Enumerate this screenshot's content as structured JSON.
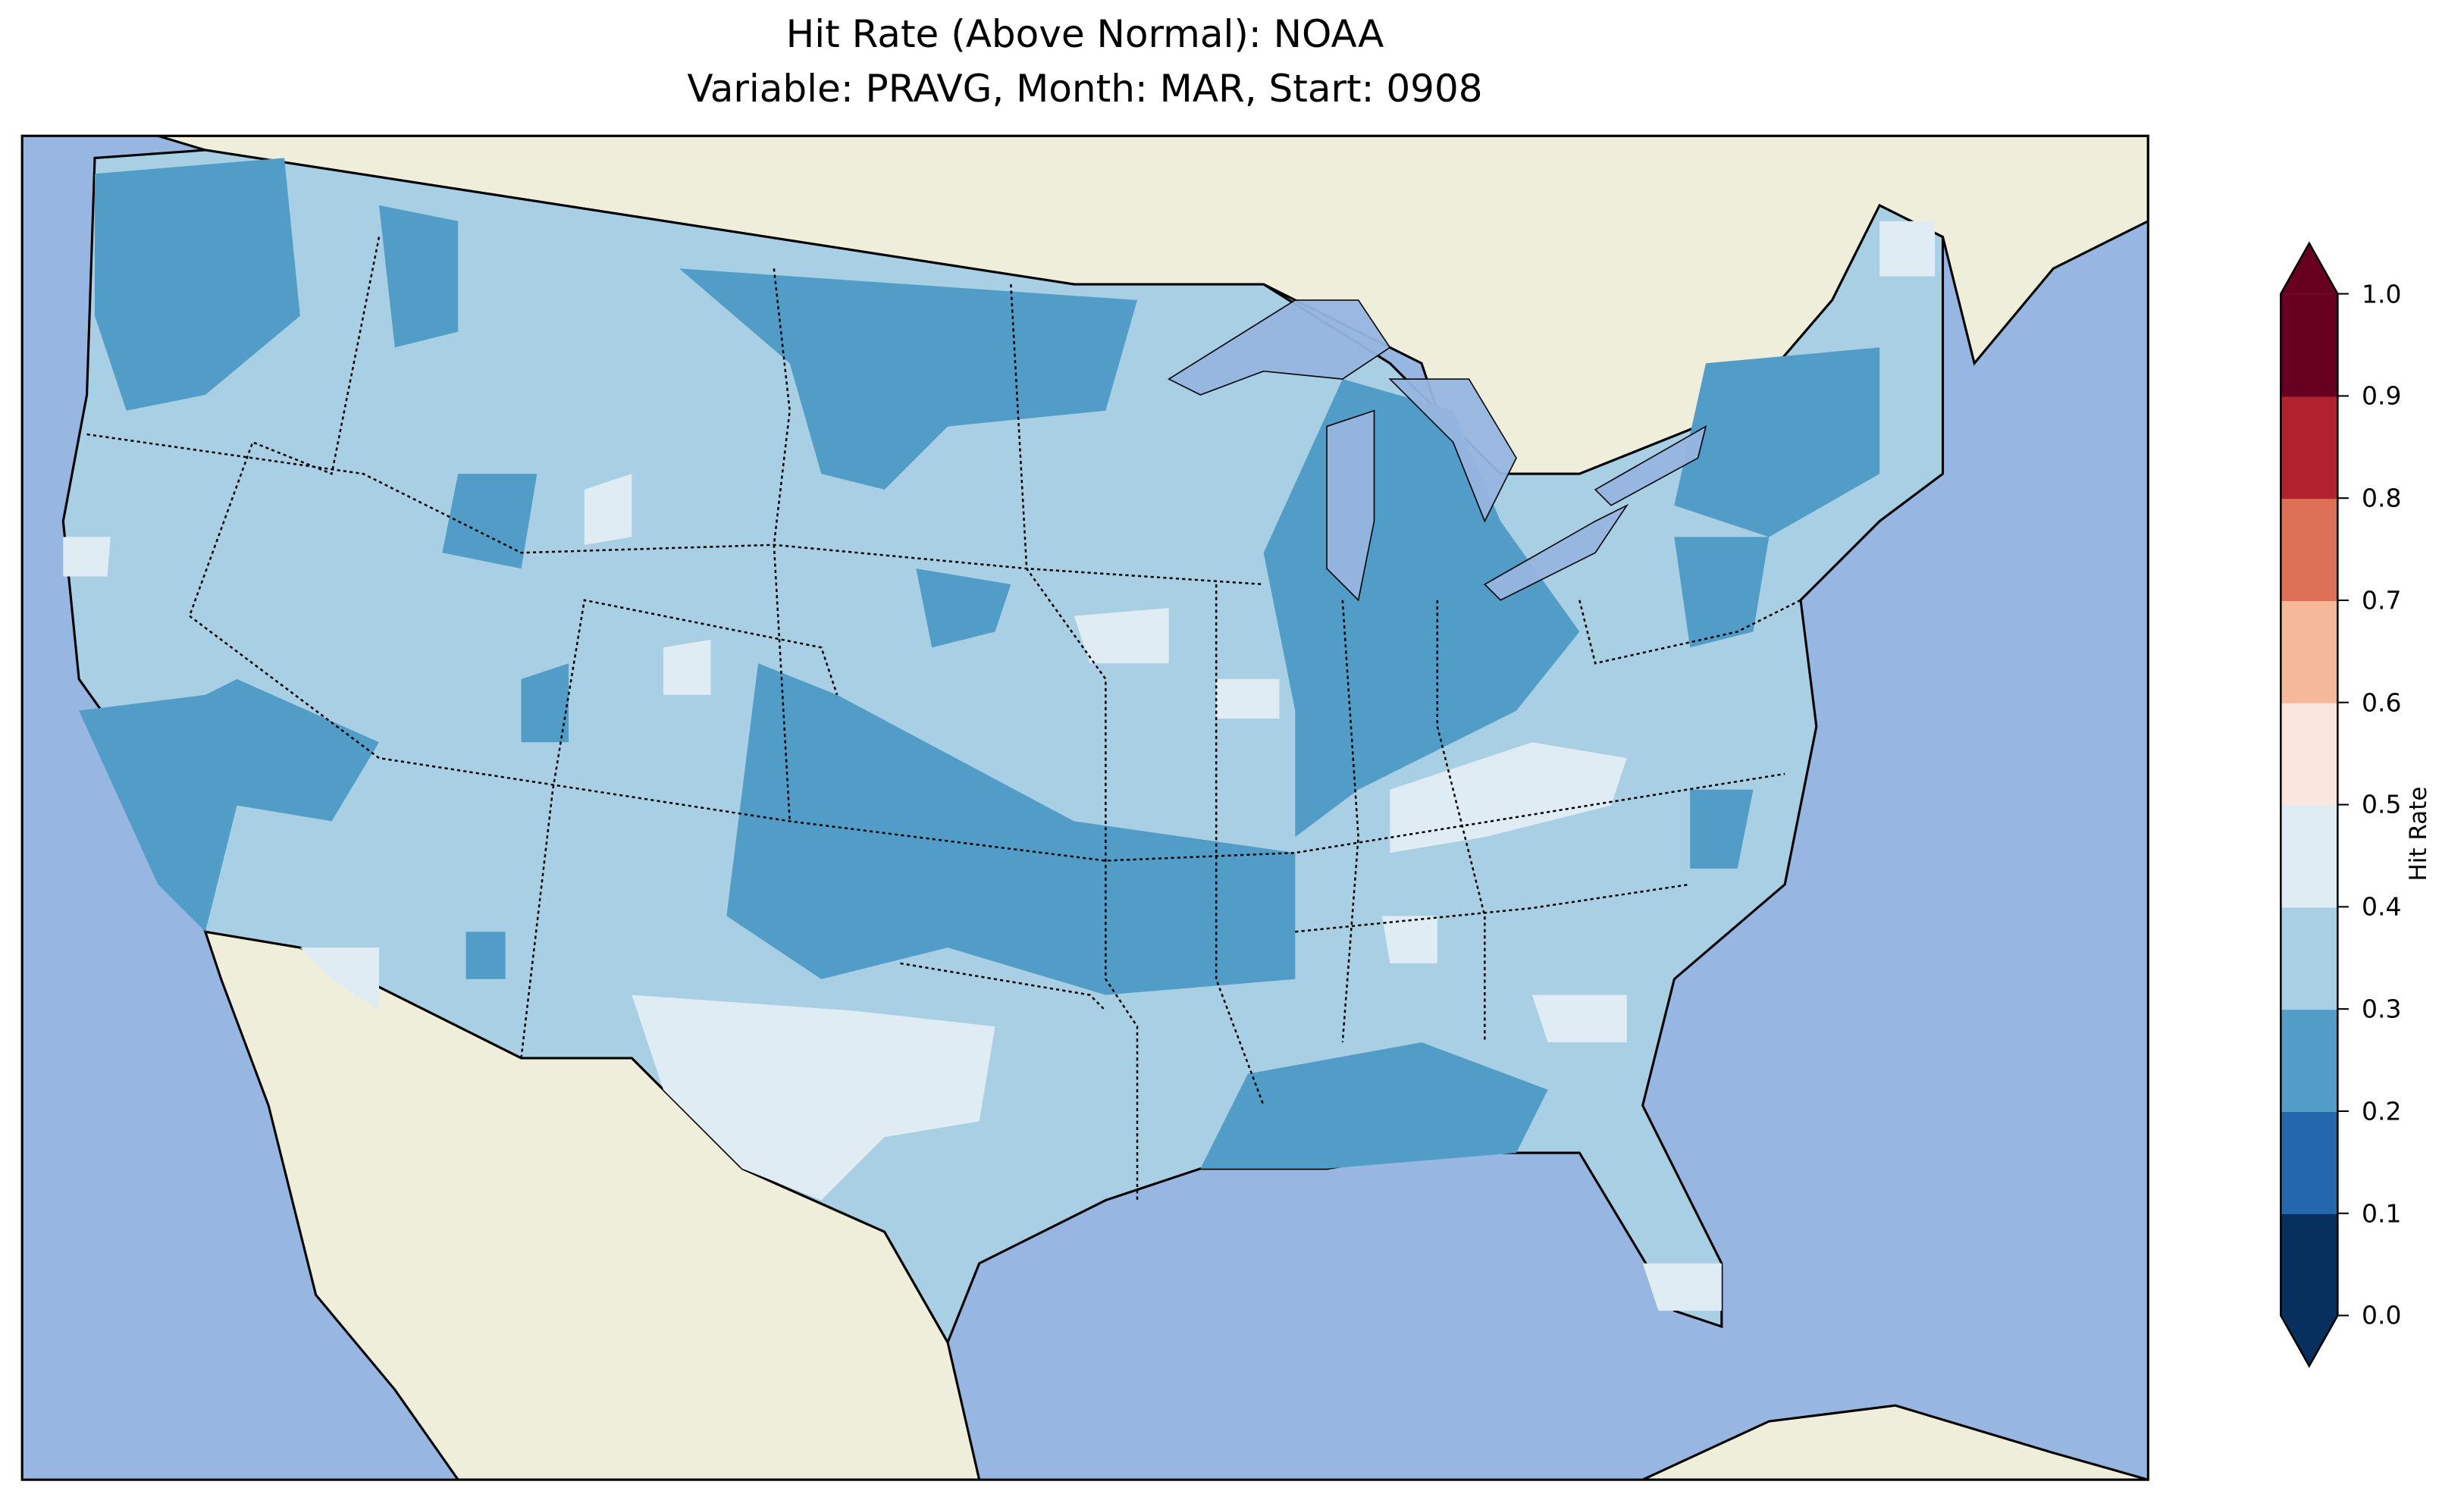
{
  "chart_data": {
    "type": "heatmap",
    "title": "Hit Rate (Above Normal): NOAA",
    "subtitle": "Variable: PRAVG, Month: MAR, Start: 0908",
    "region": "Contiguous United States",
    "colorbar": {
      "label": "Hit Rate",
      "range": [
        0.0,
        1.0
      ],
      "extend": "both",
      "ticks": [
        "0.0",
        "0.1",
        "0.2",
        "0.3",
        "0.4",
        "0.5",
        "0.6",
        "0.7",
        "0.8",
        "0.9",
        "1.0"
      ],
      "bin_colors": [
        "#08305e",
        "#2467ad",
        "#529dc8",
        "#a8cfe4",
        "#e0ecf3",
        "#f9e6dd",
        "#f5b899",
        "#dd7158",
        "#b2212e",
        "#670020"
      ]
    },
    "colors": {
      "ocean": "#97b6e1",
      "land": "#efeedb",
      "lakes": "#97b6e1"
    },
    "dominant_value_range": [
      0.3,
      0.4
    ],
    "regions_lower_0.2_0.3": [
      "Pacific Northwest",
      "California",
      "Northern Plains",
      "Southern Plains/Oklahoma",
      "Arkansas",
      "Michigan/Ohio Valley",
      "New England",
      "Gulf Coast"
    ],
    "regions_higher_0.4_0.5": [
      "West Texas",
      "Kentucky/Tennessee",
      "Southern Florida",
      "Wyoming",
      "Colorado"
    ]
  }
}
